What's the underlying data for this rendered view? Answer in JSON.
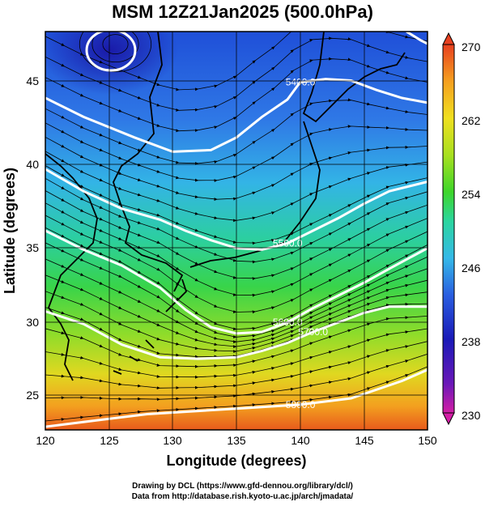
{
  "title": "MSM 12Z21Jan2025 (500.0hPa)",
  "chart_data": {
    "type": "heatmap",
    "title": "MSM 12Z21Jan2025 (500.0hPa)",
    "xlabel": "Longitude (degrees)",
    "ylabel": "Latitude  (degrees)",
    "xlim": [
      120,
      150
    ],
    "ylim": [
      22.4,
      47.6
    ],
    "xticks": [
      "120",
      "125",
      "130",
      "135",
      "140",
      "145",
      "150"
    ],
    "yticks": [
      "25",
      "30",
      "35",
      "40",
      "45"
    ],
    "grid": true,
    "colorbar": {
      "min": 230,
      "max": 270,
      "ticks": [
        "230",
        "238",
        "246",
        "254",
        "262",
        "270"
      ],
      "colormap": [
        "#d31ea6",
        "#1a1ab8",
        "#2a5ee0",
        "#35b9e8",
        "#2bd67f",
        "#3ed62a",
        "#a8e020",
        "#f0e020",
        "#f5a020",
        "#e84020"
      ]
    },
    "contours": [
      {
        "label": "5400.0",
        "lon": [
          120,
          123,
          127,
          130,
          133,
          135,
          137,
          139,
          140,
          142,
          144,
          146,
          148,
          150
        ],
        "lat": [
          43.4,
          42.2,
          40.9,
          40.0,
          40.1,
          40.9,
          42.2,
          43.3,
          44.4,
          44.6,
          44.5,
          43.9,
          43.4,
          43.1
        ]
      },
      {
        "label": "5500.0",
        "lon": [
          120,
          123,
          126,
          129,
          131,
          133,
          135,
          137,
          139,
          141,
          143,
          145,
          147,
          150
        ],
        "lat": [
          38.9,
          37.5,
          36.4,
          35.7,
          35.0,
          34.4,
          33.9,
          33.8,
          34.2,
          35.0,
          35.8,
          36.7,
          37.5,
          38.1
        ]
      },
      {
        "label": "5600.0",
        "lon": [
          120,
          123,
          126,
          129,
          131,
          133,
          135,
          137,
          139,
          141,
          143,
          145,
          147,
          150
        ],
        "lat": [
          35.0,
          33.8,
          32.8,
          31.4,
          30.0,
          28.9,
          28.5,
          28.6,
          29.2,
          30.1,
          30.9,
          31.7,
          32.6,
          33.9
        ]
      },
      {
        "label": "5700.0",
        "lon": [
          120,
          123,
          126,
          129,
          132,
          135,
          137,
          139,
          141,
          143,
          145,
          147,
          150
        ],
        "lat": [
          29.9,
          29.1,
          27.8,
          27.0,
          26.9,
          27.0,
          27.4,
          27.9,
          28.6,
          29.2,
          29.8,
          30.2,
          30.2
        ]
      },
      {
        "label": "5800.0",
        "lon": [
          120,
          124,
          128,
          132,
          136,
          140,
          144,
          148,
          150
        ],
        "lat": [
          22.6,
          23.0,
          23.4,
          23.6,
          23.8,
          24.0,
          24.4,
          25.5,
          26.2
        ]
      }
    ],
    "low_center": {
      "lon": 125.5,
      "lat": 46.8
    }
  },
  "credits": {
    "line1": "Drawing by DCL (https://www.gfd-dennou.org/library/dcl/)",
    "line2": "Data from http://database.rish.kyoto-u.ac.jp/arch/jmadata/"
  }
}
